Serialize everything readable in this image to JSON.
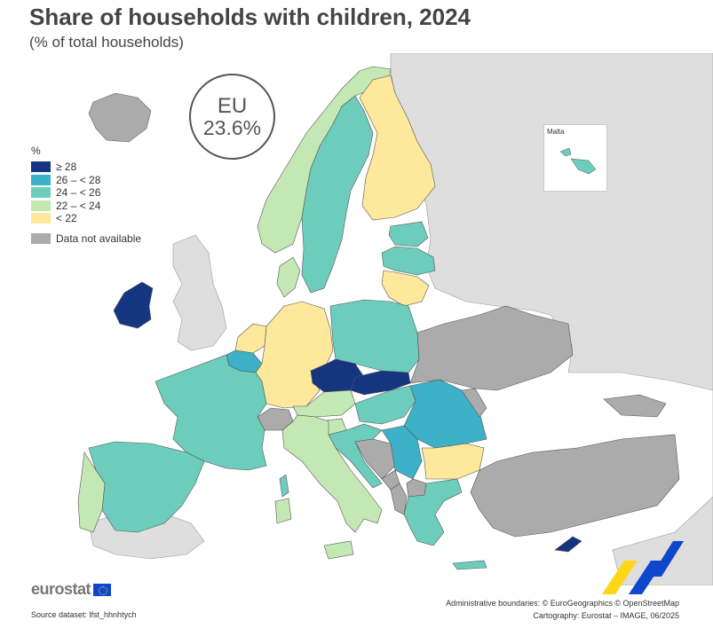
{
  "title": "Share of households with children, 2024",
  "subtitle": "(% of total households)",
  "eu_badge": {
    "label": "EU",
    "value": "23.6%"
  },
  "legend": {
    "unit": "%",
    "classes": [
      {
        "label": "≥ 28",
        "color": "#163580"
      },
      {
        "label": "26 – < 28",
        "color": "#3db1c7"
      },
      {
        "label": "24 – < 26",
        "color": "#6dcdbd"
      },
      {
        "label": "22 – < 24",
        "color": "#c4e8b4"
      },
      {
        "label": "< 22",
        "color": "#fde89b"
      }
    ],
    "no_data": {
      "label": "Data not available",
      "color": "#ababab"
    }
  },
  "inset": {
    "label": "Malta"
  },
  "colors": {
    "non_eu": "#dedede",
    "border": "#555555",
    "sea": "#ffffff"
  },
  "map_regions": [
    {
      "name": "Ireland",
      "class": "≥ 28"
    },
    {
      "name": "Czechia",
      "class": "≥ 28"
    },
    {
      "name": "Slovakia",
      "class": "≥ 28"
    },
    {
      "name": "Cyprus",
      "class": "≥ 28"
    },
    {
      "name": "Belgium",
      "class": "26 – < 28"
    },
    {
      "name": "Romania",
      "class": "26 – < 28"
    },
    {
      "name": "Serbia",
      "class": "26 – < 28"
    },
    {
      "name": "France",
      "class": "24 – < 26"
    },
    {
      "name": "Spain",
      "class": "24 – < 26"
    },
    {
      "name": "Sweden",
      "class": "24 – < 26"
    },
    {
      "name": "Poland",
      "class": "24 – < 26"
    },
    {
      "name": "Estonia",
      "class": "24 – < 26"
    },
    {
      "name": "Latvia",
      "class": "24 – < 26"
    },
    {
      "name": "Hungary",
      "class": "24 – < 26"
    },
    {
      "name": "Croatia",
      "class": "24 – < 26"
    },
    {
      "name": "Greece",
      "class": "24 – < 26"
    },
    {
      "name": "Malta",
      "class": "24 – < 26"
    },
    {
      "name": "Portugal",
      "class": "22 – < 24"
    },
    {
      "name": "Italy",
      "class": "22 – < 24"
    },
    {
      "name": "Austria",
      "class": "22 – < 24"
    },
    {
      "name": "Norway",
      "class": "22 – < 24"
    },
    {
      "name": "Denmark",
      "class": "22 – < 24"
    },
    {
      "name": "Slovenia",
      "class": "22 – < 24"
    },
    {
      "name": "Germany",
      "class": "< 22"
    },
    {
      "name": "Finland",
      "class": "< 22"
    },
    {
      "name": "Lithuania",
      "class": "< 22"
    },
    {
      "name": "Bulgaria",
      "class": "< 22"
    },
    {
      "name": "Netherlands",
      "class": "< 22"
    },
    {
      "name": "Luxembourg",
      "class": "< 22"
    },
    {
      "name": "Iceland",
      "class": "Data not available"
    },
    {
      "name": "Switzerland",
      "class": "Data not available"
    },
    {
      "name": "Bosnia and Herzegovina",
      "class": "Data not available"
    },
    {
      "name": "Montenegro",
      "class": "Data not available"
    },
    {
      "name": "Albania",
      "class": "Data not available"
    },
    {
      "name": "North Macedonia",
      "class": "Data not available"
    },
    {
      "name": "Türkiye",
      "class": "Data not available"
    },
    {
      "name": "Ukraine",
      "class": "Data not available"
    },
    {
      "name": "Moldova",
      "class": "Data not available"
    },
    {
      "name": "Georgia",
      "class": "Data not available"
    }
  ],
  "logo": {
    "text": "eurostat"
  },
  "source": "Source dataset: lfst_hhnhtych",
  "credits": {
    "boundaries": "Administrative boundaries: © EuroGeographics © OpenStreetMap",
    "cartography": "Cartography: Eurostat – IMAGE, 06/2025"
  }
}
